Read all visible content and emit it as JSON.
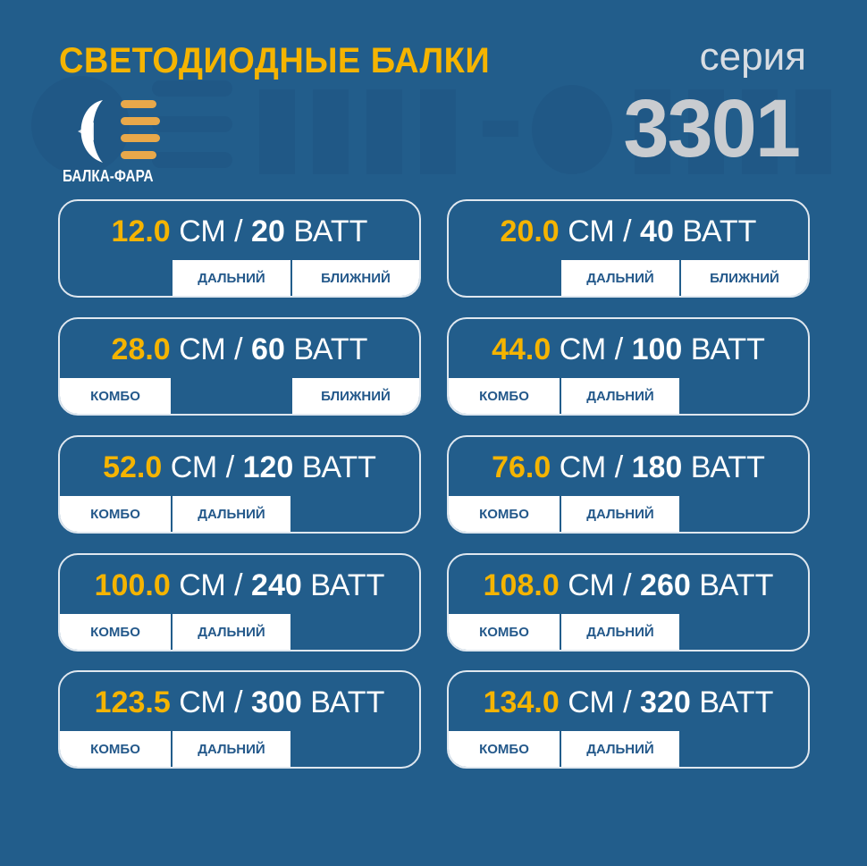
{
  "header": {
    "title": "СВЕТОДИОДНЫЕ БАЛКИ",
    "series_label": "серия",
    "series_number": "3301",
    "logo_text": "БАЛКА-ФАРА",
    "watermark": "БАЛКА-ФАРА"
  },
  "colors": {
    "background": "#225d8b",
    "accent": "#f5b400",
    "tab_text": "#23588a"
  },
  "units": {
    "length": "СМ",
    "separator": "/",
    "power": "ВАТТ"
  },
  "cards": [
    {
      "length": "12.0",
      "power": "20",
      "slots": [
        "",
        "ДАЛЬНИЙ",
        "БЛИЖНИЙ"
      ]
    },
    {
      "length": "20.0",
      "power": "40",
      "slots": [
        "",
        "ДАЛЬНИЙ",
        "БЛИЖНИЙ"
      ]
    },
    {
      "length": "28.0",
      "power": "60",
      "slots": [
        "КОМБО",
        "",
        "БЛИЖНИЙ"
      ]
    },
    {
      "length": "44.0",
      "power": "100",
      "slots": [
        "КОМБО",
        "ДАЛЬНИЙ",
        ""
      ]
    },
    {
      "length": "52.0",
      "power": "120",
      "slots": [
        "КОМБО",
        "ДАЛЬНИЙ",
        ""
      ]
    },
    {
      "length": "76.0",
      "power": "180",
      "slots": [
        "КОМБО",
        "ДАЛЬНИЙ",
        ""
      ]
    },
    {
      "length": "100.0",
      "power": "240",
      "slots": [
        "КОМБО",
        "ДАЛЬНИЙ",
        ""
      ]
    },
    {
      "length": "108.0",
      "power": "260",
      "slots": [
        "КОМБО",
        "ДАЛЬНИЙ",
        ""
      ]
    },
    {
      "length": "123.5",
      "power": "300",
      "slots": [
        "КОМБО",
        "ДАЛЬНИЙ",
        ""
      ]
    },
    {
      "length": "134.0",
      "power": "320",
      "slots": [
        "КОМБО",
        "ДАЛЬНИЙ",
        ""
      ]
    }
  ]
}
